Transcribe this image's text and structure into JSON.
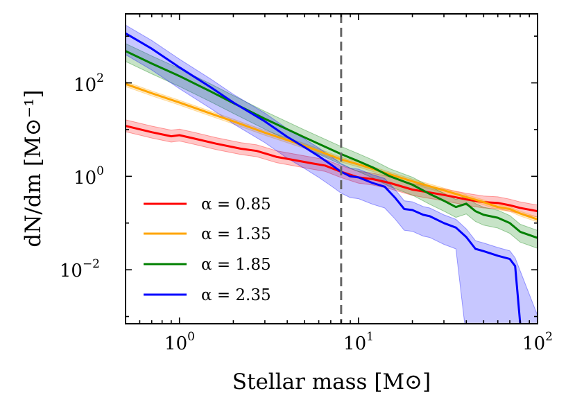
{
  "chart_data": {
    "type": "line",
    "xscale": "log",
    "yscale": "log",
    "xlim": [
      0.5,
      100
    ],
    "ylim": [
      0.0007,
      3000
    ],
    "xlabel": "Stellar mass [M⊙]",
    "ylabel": "dN/dm [M⊙⁻¹]",
    "xticks": [
      {
        "value": 1,
        "base": "10",
        "exp": "0"
      },
      {
        "value": 10,
        "base": "10",
        "exp": "1"
      },
      {
        "value": 100,
        "base": "10",
        "exp": "2"
      }
    ],
    "yticks": [
      {
        "value": 0.01,
        "base": "10",
        "exp": "−2"
      },
      {
        "value": 1,
        "base": "10",
        "exp": "0"
      },
      {
        "value": 100,
        "base": "10",
        "exp": "2"
      }
    ],
    "vline": {
      "x": 8,
      "color": "#666666",
      "style": "dashed"
    },
    "legend_position": "lower-left",
    "series": [
      {
        "name": "α = 0.85",
        "color": "#ff0000",
        "points": [
          [
            0.5,
            12
          ],
          [
            0.7,
            8.8
          ],
          [
            0.9,
            7.2
          ],
          [
            1.0,
            7.6
          ],
          [
            1.2,
            6.5
          ],
          [
            1.6,
            5.0
          ],
          [
            2.2,
            3.9
          ],
          [
            2.7,
            3.5
          ],
          [
            3.5,
            2.6
          ],
          [
            5.5,
            1.9
          ],
          [
            6.5,
            1.7
          ],
          [
            8,
            1.25
          ],
          [
            10,
            0.95
          ],
          [
            12,
            0.87
          ],
          [
            15,
            0.72
          ],
          [
            20,
            0.52
          ],
          [
            25,
            0.45
          ],
          [
            30,
            0.4
          ],
          [
            40,
            0.32
          ],
          [
            50,
            0.28
          ],
          [
            60,
            0.27
          ],
          [
            70,
            0.24
          ],
          [
            80,
            0.21
          ],
          [
            100,
            0.18
          ]
        ],
        "band": [
          1.35,
          0.75
        ]
      },
      {
        "name": "α = 1.35",
        "color": "#ffa500",
        "points": [
          [
            0.5,
            95
          ],
          [
            0.7,
            60
          ],
          [
            1.0,
            38
          ],
          [
            1.5,
            22
          ],
          [
            2,
            15
          ],
          [
            3,
            8.6
          ],
          [
            5,
            4.5
          ],
          [
            8,
            2.3
          ],
          [
            10,
            1.8
          ],
          [
            15,
            1.1
          ],
          [
            20,
            0.78
          ],
          [
            30,
            0.5
          ],
          [
            40,
            0.36
          ],
          [
            50,
            0.28
          ],
          [
            60,
            0.22
          ],
          [
            70,
            0.2
          ],
          [
            80,
            0.16
          ],
          [
            100,
            0.12
          ]
        ],
        "band": [
          1.12,
          0.88
        ]
      },
      {
        "name": "α = 1.85",
        "color": "#008000",
        "points": [
          [
            0.5,
            480
          ],
          [
            0.7,
            260
          ],
          [
            1.0,
            140
          ],
          [
            1.5,
            65
          ],
          [
            2,
            37
          ],
          [
            3,
            17
          ],
          [
            5,
            6.8
          ],
          [
            8,
            3.0
          ],
          [
            10,
            2.1
          ],
          [
            12,
            1.55
          ],
          [
            15,
            1.0
          ],
          [
            20,
            0.66
          ],
          [
            25,
            0.42
          ],
          [
            30,
            0.3
          ],
          [
            35,
            0.22
          ],
          [
            40,
            0.26
          ],
          [
            45,
            0.18
          ],
          [
            50,
            0.15
          ],
          [
            60,
            0.13
          ],
          [
            70,
            0.1
          ],
          [
            80,
            0.065
          ],
          [
            100,
            0.048
          ]
        ],
        "band": [
          1.45,
          0.6
        ]
      },
      {
        "name": "α = 2.35",
        "color": "#0000ff",
        "points": [
          [
            0.5,
            1150
          ],
          [
            0.7,
            540
          ],
          [
            1.0,
            215
          ],
          [
            1.5,
            80
          ],
          [
            2,
            38
          ],
          [
            3,
            15
          ],
          [
            4,
            7.0
          ],
          [
            5,
            4.2
          ],
          [
            6,
            2.7
          ],
          [
            7,
            1.8
          ],
          [
            8,
            1.25
          ],
          [
            9,
            1.0
          ],
          [
            10,
            0.95
          ],
          [
            12,
            0.72
          ],
          [
            14,
            0.6
          ],
          [
            16,
            0.35
          ],
          [
            18,
            0.2
          ],
          [
            20,
            0.19
          ],
          [
            23,
            0.15
          ],
          [
            25,
            0.14
          ],
          [
            30,
            0.1
          ],
          [
            35,
            0.08
          ],
          [
            40,
            0.05
          ],
          [
            45,
            0.028
          ],
          [
            50,
            0.025
          ],
          [
            60,
            0.02
          ],
          [
            70,
            0.017
          ],
          [
            75,
            0.012
          ],
          [
            80,
            0.0007
          ]
        ],
        "band_upper": 1.5,
        "band_floor_from_x": 38,
        "band_lower": 0.35
      }
    ]
  }
}
